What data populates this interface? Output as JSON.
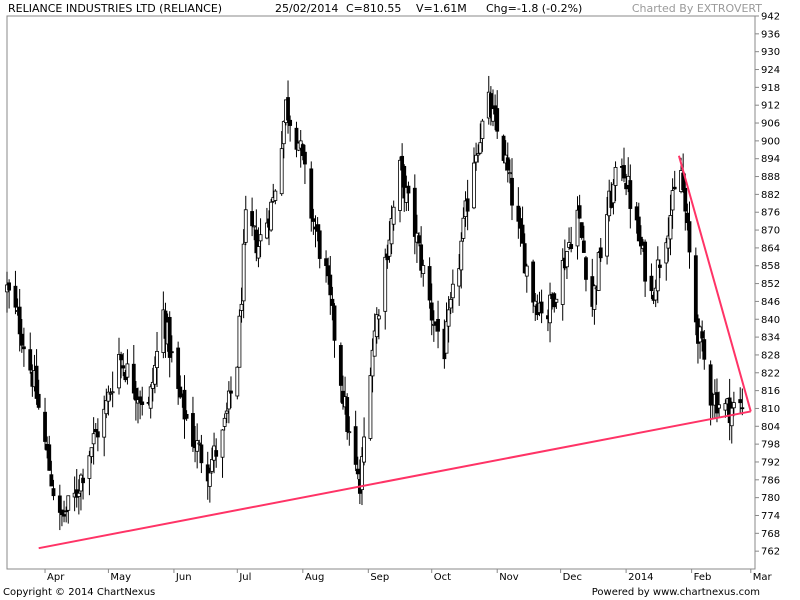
{
  "header": {
    "title": "RELIANCE INDUSTRIES LTD (RELIANCE)",
    "date": "25/02/2014",
    "close": "C=810.55",
    "volume": "V=1.61M",
    "change": "Chg=-1.8 (-0.2%)",
    "credit": "Charted By EXTROVERT"
  },
  "footer": {
    "copyright": "Copyright © 2014 ChartNexus",
    "powered": "Powered by www.chartnexus.com"
  },
  "colors": {
    "background": "#ffffff",
    "plot_border": "#888888",
    "candle": "#000000",
    "trendline": "#ff3366"
  },
  "chart_data": {
    "type": "candlestick",
    "title": "RELIANCE INDUSTRIES LTD (RELIANCE)",
    "ylim": [
      756,
      942
    ],
    "y_ticks": [
      942,
      936,
      930,
      924,
      918,
      912,
      906,
      900,
      894,
      888,
      882,
      876,
      870,
      864,
      858,
      852,
      846,
      840,
      834,
      828,
      822,
      816,
      810,
      804,
      798,
      792,
      786,
      780,
      774,
      768,
      762
    ],
    "x_ticks": [
      {
        "label": "Apr",
        "date": "2013-04-01"
      },
      {
        "label": "May",
        "date": "2013-05-01"
      },
      {
        "label": "Jun",
        "date": "2013-06-01"
      },
      {
        "label": "Jul",
        "date": "2013-07-01"
      },
      {
        "label": "Aug",
        "date": "2013-08-01"
      },
      {
        "label": "Sep",
        "date": "2013-09-01"
      },
      {
        "label": "Oct",
        "date": "2013-10-01"
      },
      {
        "label": "Nov",
        "date": "2013-11-01"
      },
      {
        "label": "Dec",
        "date": "2013-12-01"
      },
      {
        "label": "2014",
        "date": "2014-01-01"
      },
      {
        "label": "Feb",
        "date": "2014-02-01"
      },
      {
        "label": "Mar",
        "date": "2014-03-01"
      }
    ],
    "x_range": [
      "2013-03-14",
      "2014-03-03"
    ],
    "closing_path": [
      [
        "2013-03-14",
        850
      ],
      [
        "2013-03-20",
        838
      ],
      [
        "2013-03-27",
        818
      ],
      [
        "2013-04-03",
        790
      ],
      [
        "2013-04-08",
        772
      ],
      [
        "2013-04-15",
        780
      ],
      [
        "2013-04-22",
        796
      ],
      [
        "2013-04-29",
        808
      ],
      [
        "2013-05-06",
        828
      ],
      [
        "2013-05-13",
        818
      ],
      [
        "2013-05-20",
        810
      ],
      [
        "2013-05-27",
        842
      ],
      [
        "2013-06-03",
        815
      ],
      [
        "2013-06-10",
        800
      ],
      [
        "2013-06-17",
        790
      ],
      [
        "2013-06-24",
        800
      ],
      [
        "2013-07-01",
        826
      ],
      [
        "2013-07-05",
        872
      ],
      [
        "2013-07-11",
        865
      ],
      [
        "2013-07-18",
        880
      ],
      [
        "2013-07-24",
        912
      ],
      [
        "2013-07-30",
        900
      ],
      [
        "2013-08-05",
        876
      ],
      [
        "2013-08-12",
        855
      ],
      [
        "2013-08-19",
        820
      ],
      [
        "2013-08-23",
        800
      ],
      [
        "2013-08-28",
        782
      ],
      [
        "2013-09-02",
        826
      ],
      [
        "2013-09-09",
        860
      ],
      [
        "2013-09-16",
        890
      ],
      [
        "2013-09-23",
        870
      ],
      [
        "2013-10-01",
        842
      ],
      [
        "2013-10-07",
        830
      ],
      [
        "2013-10-14",
        860
      ],
      [
        "2013-10-21",
        895
      ],
      [
        "2013-10-28",
        912
      ],
      [
        "2013-11-04",
        896
      ],
      [
        "2013-11-11",
        870
      ],
      [
        "2013-11-18",
        848
      ],
      [
        "2013-11-25",
        842
      ],
      [
        "2013-12-02",
        858
      ],
      [
        "2013-12-09",
        876
      ],
      [
        "2013-12-16",
        845
      ],
      [
        "2013-12-23",
        876
      ],
      [
        "2013-12-30",
        894
      ],
      [
        "2014-01-06",
        870
      ],
      [
        "2014-01-13",
        848
      ],
      [
        "2014-01-20",
        870
      ],
      [
        "2014-01-27",
        890
      ],
      [
        "2014-02-03",
        840
      ],
      [
        "2014-02-10",
        815
      ],
      [
        "2014-02-17",
        810
      ],
      [
        "2014-02-25",
        810.55
      ]
    ],
    "trendlines": [
      {
        "from": [
          "2013-03-29",
          763
        ],
        "to": [
          "2014-03-01",
          809
        ]
      },
      {
        "from": [
          "2014-01-26",
          895
        ],
        "to": [
          "2014-03-01",
          809
        ]
      }
    ]
  }
}
